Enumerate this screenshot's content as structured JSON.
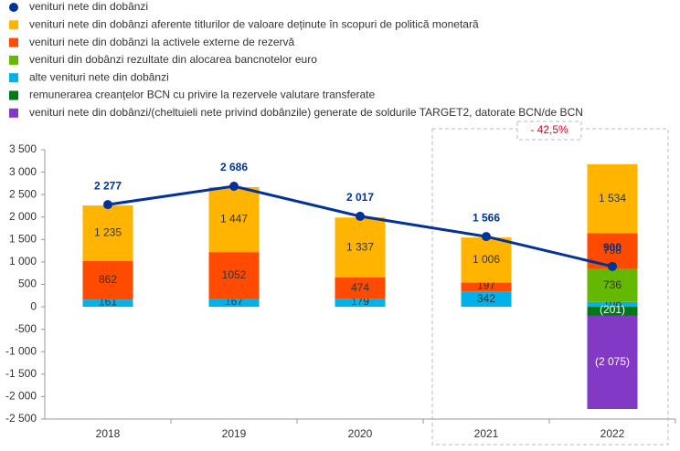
{
  "chart_data": {
    "type": "bar",
    "categories": [
      "2018",
      "2019",
      "2020",
      "2021",
      "2022"
    ],
    "series": [
      {
        "name": "alte venituri nete din dobânzi",
        "color": "#00b1ea",
        "values": [
          161,
          167,
          179,
          342,
          108
        ]
      },
      {
        "name": "venituri din dobânzi rezultate din alocarea bancnotelor euro",
        "color": "#65b800",
        "values": [
          null,
          null,
          null,
          null,
          736
        ]
      },
      {
        "name": "venituri nete din dobânzi la activele externe de rezervă",
        "color": "#ff4b00",
        "values": [
          862,
          1052,
          474,
          197,
          798
        ]
      },
      {
        "name": "venituri nete din dobânzi aferente titlurilor de valoare deținute în scopuri de politică monetară",
        "color": "#ffb400",
        "values": [
          1235,
          1447,
          1337,
          1006,
          1534
        ],
        "value_labels": [
          "1 235",
          "1 447",
          "1 337",
          "1 006",
          "1 534"
        ]
      },
      {
        "name": "remunerarea creanțelor BCN cu privire la rezervele valutare transferate",
        "color": "#007816",
        "values": [
          null,
          null,
          null,
          null,
          -201
        ],
        "value_labels": [
          null,
          null,
          null,
          null,
          "(201)"
        ]
      },
      {
        "name": "venituri nete din dobânzi/(cheltuieli nete privind dobânzile) generate de soldurile TARGET2, datorate BCN/de BCN",
        "color": "#8139c6",
        "values": [
          null,
          null,
          null,
          null,
          -2075
        ],
        "value_labels": [
          null,
          null,
          null,
          null,
          "(2 075)"
        ]
      }
    ],
    "line": {
      "name": "venituri nete din dobânzi",
      "color": "#003299",
      "values": [
        2277,
        2686,
        2017,
        1566,
        900
      ],
      "value_labels": [
        "2 277",
        "2 686",
        "2 017",
        "1 566",
        "900"
      ]
    },
    "legend_order": [
      "line",
      3,
      2,
      1,
      0,
      4,
      5
    ],
    "annotation": "- 42,5%",
    "ylim": [
      -2500,
      3500
    ],
    "yticks": [
      {
        "value": -2500,
        "label": "-2 500"
      },
      {
        "value": -2000,
        "label": "-2 000"
      },
      {
        "value": -1500,
        "label": "-1 500"
      },
      {
        "value": -1000,
        "label": "-1 000"
      },
      -500,
      0,
      500,
      {
        "value": 1000,
        "label": "1 000"
      },
      {
        "value": 1500,
        "label": "1 500"
      },
      {
        "value": 2000,
        "label": "2 000"
      },
      {
        "value": 2500,
        "label": "2 500"
      },
      {
        "value": 3000,
        "label": "3 000"
      },
      {
        "value": 3500,
        "label": "3 500"
      }
    ],
    "grid": false
  }
}
